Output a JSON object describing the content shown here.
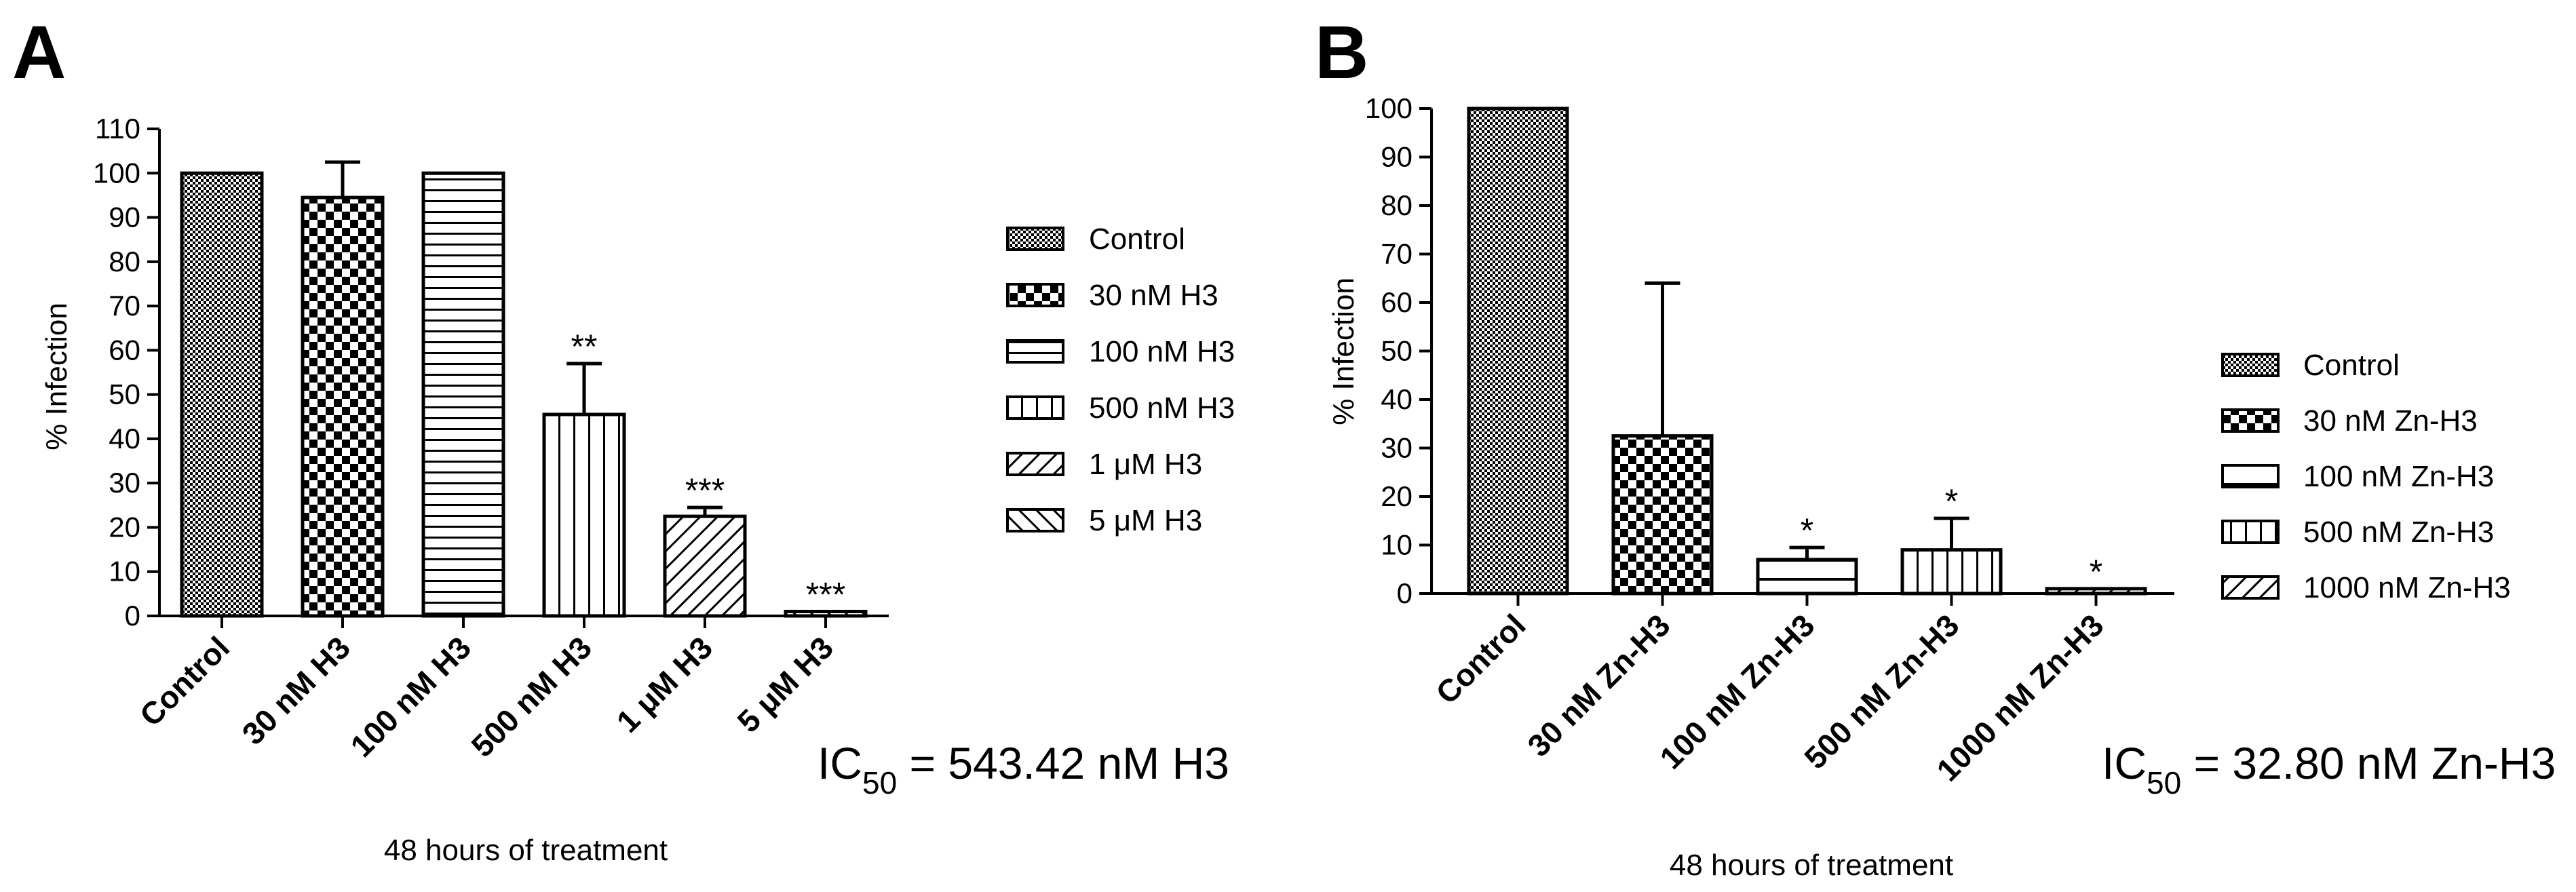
{
  "chart_data": [
    {
      "panel": "A",
      "type": "bar",
      "ylabel": "% Infection",
      "xlabel": "48 hours of treatment",
      "ylim": [
        0,
        110
      ],
      "yticks": [
        0,
        10,
        20,
        30,
        40,
        50,
        60,
        70,
        80,
        90,
        100,
        110
      ],
      "categories": [
        "Control",
        "30 nM H3",
        "100 nM H3",
        "500 nM H3",
        "1 μM H3",
        "5  μM H3"
      ],
      "values": [
        100,
        94.5,
        100,
        45.5,
        22.5,
        1
      ],
      "errors": [
        0,
        8,
        0,
        11.5,
        2,
        0
      ],
      "significance": [
        "",
        "",
        "",
        "**",
        "***",
        "***"
      ],
      "patterns": [
        "fine-check",
        "coarse-check",
        "horizontal",
        "vertical",
        "diagonal-up",
        "diagonal-down"
      ],
      "legend": [
        "Control",
        "30 nM H3",
        "100 nM H3",
        "500 nM H3",
        "1 μM H3",
        "5  μM H3"
      ],
      "legend_position": "right",
      "annotation": {
        "prefix": "IC",
        "sub": "50",
        "suffix": " = 543.42 nM H3"
      }
    },
    {
      "panel": "B",
      "type": "bar",
      "ylabel": "% Infection",
      "xlabel": "48 hours of treatment",
      "ylim": [
        0,
        100
      ],
      "yticks": [
        0,
        10,
        20,
        30,
        40,
        50,
        60,
        70,
        80,
        90,
        100
      ],
      "categories": [
        "Control",
        "30 nM Zn-H3",
        "100 nM Zn-H3",
        "500 nM Zn-H3",
        "1000 nM Zn-H3"
      ],
      "values": [
        100,
        32.5,
        7,
        9,
        1
      ],
      "errors": [
        0,
        31.5,
        2.5,
        6.5,
        0
      ],
      "significance": [
        "",
        "",
        "*",
        "*",
        "*"
      ],
      "patterns": [
        "fine-check",
        "coarse-check",
        "horizontal-wide",
        "vertical",
        "diagonal-up"
      ],
      "legend": [
        "Control",
        "30 nM Zn-H3",
        "100 nM Zn-H3",
        "500 nM Zn-H3",
        "1000 nM Zn-H3"
      ],
      "legend_position": "right",
      "annotation": {
        "prefix": "IC",
        "sub": "50",
        "suffix": " = 32.80 nM Zn-H3"
      }
    }
  ]
}
